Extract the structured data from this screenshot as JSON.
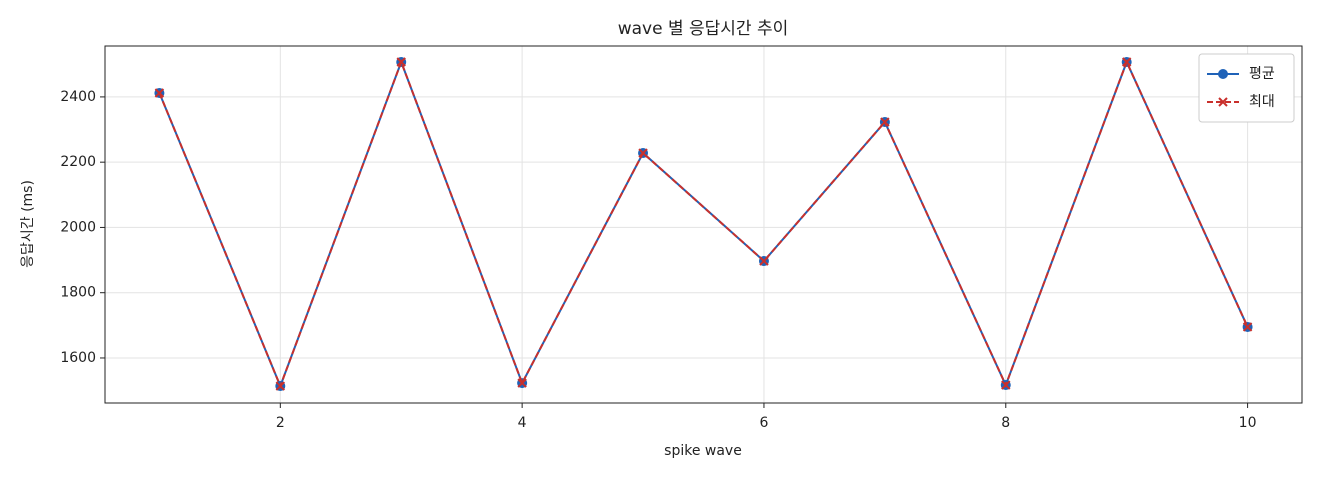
{
  "chart_data": {
    "type": "line",
    "title": "wave 별 응답시간 추이",
    "xlabel": "spike wave",
    "ylabel": "응답시간 (ms)",
    "x": [
      1,
      2,
      3,
      4,
      5,
      6,
      7,
      8,
      9,
      10
    ],
    "series": [
      {
        "name": "평균",
        "color": "#1f62b8",
        "marker": "o",
        "linestyle": "solid",
        "values": [
          2412,
          1514,
          2507,
          1523,
          2228,
          1897,
          2323,
          1517,
          2507,
          1695
        ]
      },
      {
        "name": "최대",
        "color": "#c9302c",
        "marker": "x",
        "linestyle": "dashed",
        "values": [
          2412,
          1514,
          2507,
          1523,
          2228,
          1897,
          2323,
          1517,
          2507,
          1695
        ]
      }
    ],
    "xlim": [
      0.55,
      10.45
    ],
    "xticks": [
      2,
      4,
      6,
      8,
      10
    ],
    "ylim": [
      1462,
      2556
    ],
    "yticks": [
      1600,
      1800,
      2000,
      2200,
      2400
    ],
    "grid": true,
    "legend": "upper right"
  }
}
